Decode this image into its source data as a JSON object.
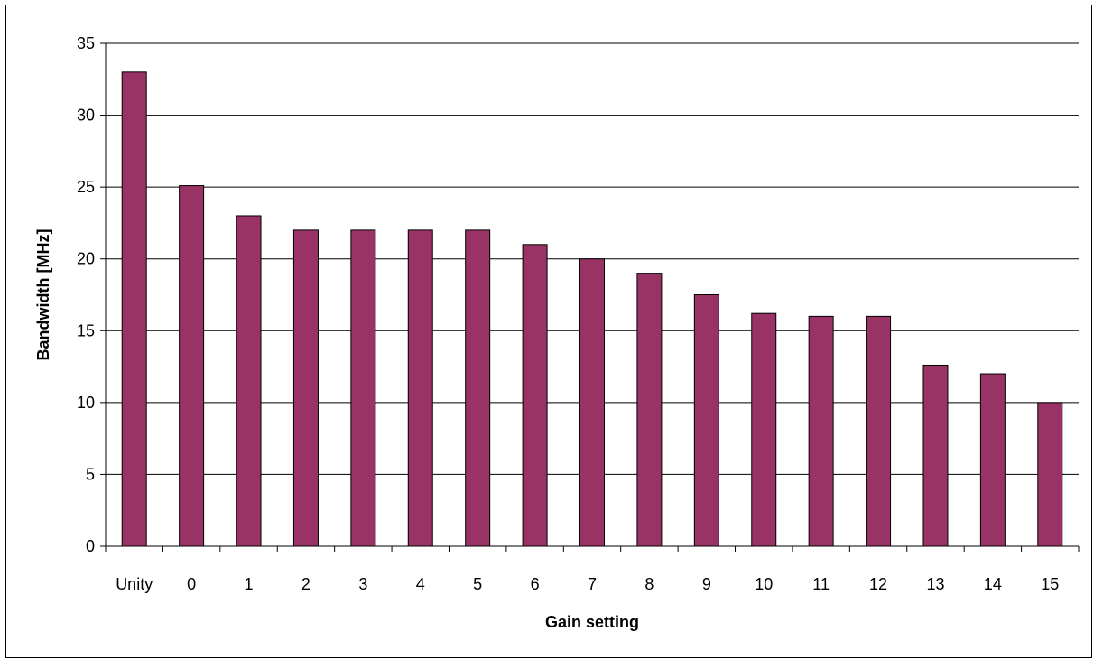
{
  "chart_data": {
    "type": "bar",
    "title": "",
    "xlabel": "Gain setting",
    "ylabel": "Bandwidth [MHz]",
    "categories": [
      "Unity",
      "0",
      "1",
      "2",
      "3",
      "4",
      "5",
      "6",
      "7",
      "8",
      "9",
      "10",
      "11",
      "12",
      "13",
      "14",
      "15"
    ],
    "values": [
      33,
      25.1,
      23,
      22,
      22,
      22,
      22,
      21,
      20,
      19,
      17.5,
      16.2,
      16,
      16,
      12.6,
      12,
      10
    ],
    "ylim": [
      0,
      35
    ],
    "yticks": [
      "0",
      "5",
      "10",
      "15",
      "20",
      "25",
      "30",
      "35"
    ],
    "grid": true,
    "legend": "none",
    "colors": {
      "bar": "#993366",
      "bar_edge": "#000000",
      "grid": "#000000",
      "axis": "#000000"
    }
  }
}
